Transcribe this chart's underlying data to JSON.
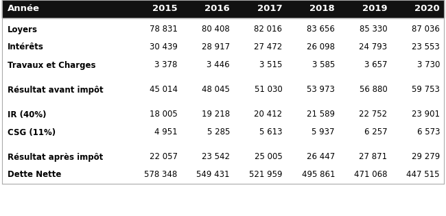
{
  "header_row": [
    "Année",
    "2015",
    "2016",
    "2017",
    "2018",
    "2019",
    "2020"
  ],
  "rows": [
    {
      "label": "Loyers",
      "values": [
        "78 831",
        "80 408",
        "82 016",
        "83 656",
        "85 330",
        "87 036"
      ],
      "gap_before": true
    },
    {
      "label": "Intérêts",
      "values": [
        "30 439",
        "28 917",
        "27 472",
        "26 098",
        "24 793",
        "23 553"
      ],
      "gap_before": false
    },
    {
      "label": "Travaux et Charges",
      "values": [
        "3 378",
        "3 446",
        "3 515",
        "3 585",
        "3 657",
        "3 730"
      ],
      "gap_before": false
    },
    {
      "label": "Résultat avant impôt",
      "values": [
        "45 014",
        "48 045",
        "51 030",
        "53 973",
        "56 880",
        "59 753"
      ],
      "gap_before": true
    },
    {
      "label": "IR (40%)",
      "values": [
        "18 005",
        "19 218",
        "20 412",
        "21 589",
        "22 752",
        "23 901"
      ],
      "gap_before": true
    },
    {
      "label": "CSG (11%)",
      "values": [
        "4 951",
        "5 285",
        "5 613",
        "5 937",
        "6 257",
        "6 573"
      ],
      "gap_before": false
    },
    {
      "label": "Résultat après impôt",
      "values": [
        "22 057",
        "23 542",
        "25 005",
        "26 447",
        "27 871",
        "29 279"
      ],
      "gap_before": true
    },
    {
      "label": "Dette Nette",
      "values": [
        "578 348",
        "549 431",
        "521 959",
        "495 861",
        "471 068",
        "447 515"
      ],
      "gap_before": false
    }
  ],
  "header_bg": "#111111",
  "header_fg": "#ffffff",
  "body_bg": "#ffffff",
  "body_fg": "#000000",
  "border_color": "#aaaaaa",
  "font_size": 8.5,
  "header_font_size": 9.5
}
